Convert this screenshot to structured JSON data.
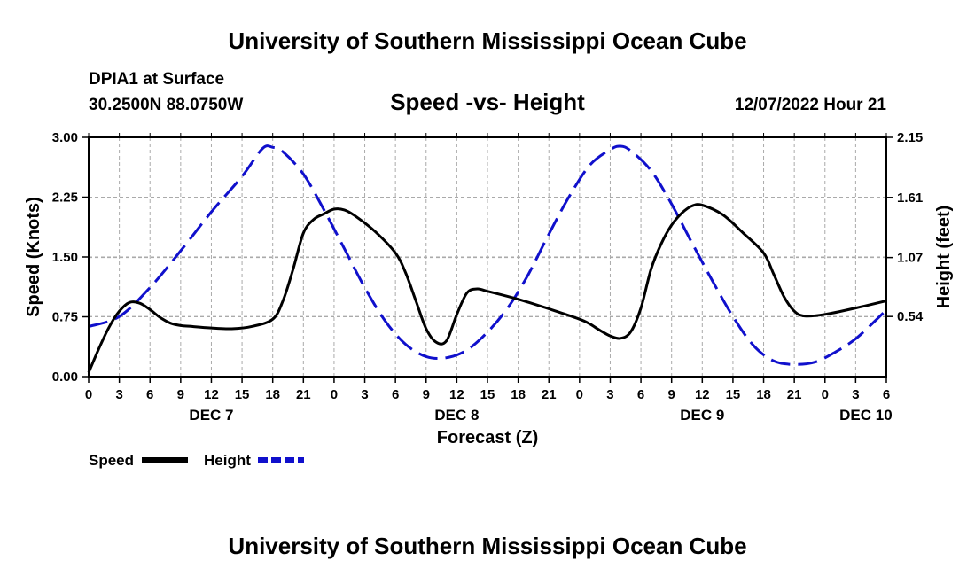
{
  "header": {
    "title": "University of Southern Mississippi Ocean Cube",
    "station": "DPIA1 at Surface",
    "coords": "30.2500N  88.0750W",
    "chart_title": "Speed -vs- Height",
    "timestamp": "12/07/2022 Hour 21"
  },
  "footer": {
    "title": "University of Southern Mississippi Ocean Cube"
  },
  "chart_data": {
    "type": "line",
    "title": "Speed -vs- Height",
    "xlabel": "Forecast (Z)",
    "ylabel": "Speed (Knots)",
    "y2label": "Height (feet)",
    "x_hours": [
      0,
      3,
      6,
      9,
      12,
      15,
      18,
      21,
      24,
      27,
      30,
      33,
      36,
      39,
      42,
      45,
      48,
      51,
      54,
      57,
      60,
      63,
      66,
      69,
      72,
      75,
      78
    ],
    "x_tick_labels": [
      "0",
      "3",
      "6",
      "9",
      "12",
      "15",
      "18",
      "21",
      "0",
      "3",
      "6",
      "9",
      "12",
      "15",
      "18",
      "21",
      "0",
      "3",
      "6",
      "9",
      "12",
      "15",
      "18",
      "21",
      "0",
      "3",
      "6"
    ],
    "date_labels": [
      {
        "label": "DEC 7",
        "hour": 12
      },
      {
        "label": "DEC 8",
        "hour": 36
      },
      {
        "label": "DEC 9",
        "hour": 60
      },
      {
        "label": "DEC 10",
        "hour": 76
      }
    ],
    "xlim": [
      0,
      78
    ],
    "ylim": [
      0,
      3.0
    ],
    "y_ticks": [
      "0.00",
      "0.75",
      "1.50",
      "2.25",
      "3.00"
    ],
    "y_tick_values": [
      0,
      0.75,
      1.5,
      2.25,
      3.0
    ],
    "y2lim": [
      0,
      2.15
    ],
    "y2_ticks": [
      "0.54",
      "1.07",
      "1.61",
      "2.15"
    ],
    "y2_tick_values": [
      0.54,
      1.07,
      1.61,
      2.15
    ],
    "grid": true,
    "legend_position": "bottom-left",
    "series": [
      {
        "name": "Speed",
        "axis": "left",
        "color": "#000000",
        "style": "solid",
        "points": [
          [
            0,
            0.05
          ],
          [
            1,
            0.35
          ],
          [
            2,
            0.62
          ],
          [
            3,
            0.82
          ],
          [
            4,
            0.93
          ],
          [
            5,
            0.92
          ],
          [
            6,
            0.84
          ],
          [
            7,
            0.74
          ],
          [
            8,
            0.67
          ],
          [
            9,
            0.64
          ],
          [
            10,
            0.63
          ],
          [
            12,
            0.61
          ],
          [
            14,
            0.6
          ],
          [
            16,
            0.63
          ],
          [
            18,
            0.72
          ],
          [
            19,
            0.95
          ],
          [
            20,
            1.35
          ],
          [
            21,
            1.8
          ],
          [
            22,
            1.97
          ],
          [
            23,
            2.04
          ],
          [
            24,
            2.1
          ],
          [
            25,
            2.09
          ],
          [
            26,
            2.02
          ],
          [
            28,
            1.82
          ],
          [
            30,
            1.55
          ],
          [
            31,
            1.3
          ],
          [
            32,
            0.95
          ],
          [
            33,
            0.6
          ],
          [
            34,
            0.43
          ],
          [
            35,
            0.45
          ],
          [
            36,
            0.78
          ],
          [
            37,
            1.05
          ],
          [
            38,
            1.1
          ],
          [
            39,
            1.07
          ],
          [
            42,
            0.97
          ],
          [
            45,
            0.85
          ],
          [
            48,
            0.72
          ],
          [
            49,
            0.66
          ],
          [
            50,
            0.58
          ],
          [
            51,
            0.51
          ],
          [
            52,
            0.48
          ],
          [
            53,
            0.56
          ],
          [
            54,
            0.86
          ],
          [
            55,
            1.35
          ],
          [
            56,
            1.67
          ],
          [
            57,
            1.9
          ],
          [
            58,
            2.05
          ],
          [
            59,
            2.14
          ],
          [
            60,
            2.15
          ],
          [
            62,
            2.03
          ],
          [
            64,
            1.8
          ],
          [
            66,
            1.55
          ],
          [
            67,
            1.28
          ],
          [
            68,
            1.0
          ],
          [
            69,
            0.82
          ],
          [
            70,
            0.76
          ],
          [
            72,
            0.78
          ],
          [
            75,
            0.86
          ],
          [
            78,
            0.95
          ]
        ]
      },
      {
        "name": "Height",
        "axis": "right",
        "color": "#1010cc",
        "style": "dashed",
        "points": [
          [
            0,
            0.45
          ],
          [
            3,
            0.54
          ],
          [
            6,
            0.8
          ],
          [
            9,
            1.13
          ],
          [
            12,
            1.48
          ],
          [
            15,
            1.8
          ],
          [
            17,
            2.05
          ],
          [
            18,
            2.06
          ],
          [
            19,
            2.02
          ],
          [
            21,
            1.82
          ],
          [
            23,
            1.5
          ],
          [
            25,
            1.15
          ],
          [
            27,
            0.8
          ],
          [
            29,
            0.5
          ],
          [
            31,
            0.29
          ],
          [
            33,
            0.18
          ],
          [
            35,
            0.17
          ],
          [
            37,
            0.24
          ],
          [
            39,
            0.4
          ],
          [
            41,
            0.62
          ],
          [
            43,
            0.92
          ],
          [
            45,
            1.28
          ],
          [
            47,
            1.62
          ],
          [
            49,
            1.9
          ],
          [
            51,
            2.04
          ],
          [
            52,
            2.07
          ],
          [
            53,
            2.03
          ],
          [
            55,
            1.85
          ],
          [
            57,
            1.55
          ],
          [
            59,
            1.2
          ],
          [
            61,
            0.86
          ],
          [
            63,
            0.54
          ],
          [
            65,
            0.28
          ],
          [
            67,
            0.14
          ],
          [
            69,
            0.11
          ],
          [
            71,
            0.13
          ],
          [
            73,
            0.22
          ],
          [
            75,
            0.34
          ],
          [
            77,
            0.51
          ],
          [
            78,
            0.6
          ]
        ]
      }
    ]
  }
}
